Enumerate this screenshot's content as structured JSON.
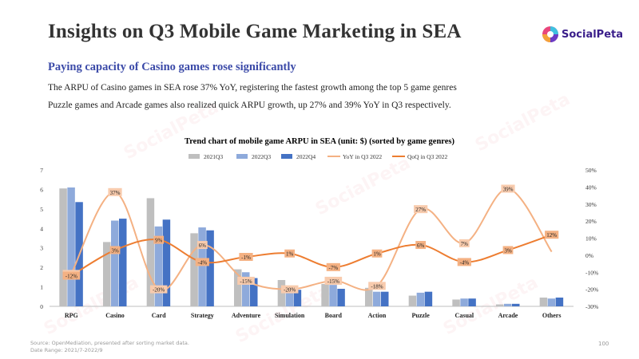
{
  "header": {
    "title": "Insights on Q3 Mobile Game Marketing in SEA",
    "logo_text": "SocialPeta"
  },
  "section": {
    "subtitle": "Paying capacity of Casino games rose significantly",
    "lines": [
      "The ARPU of Casino games in SEA rose 37% YoY, registering the fastest growth among the top 5 game genres",
      "Puzzle games and Arcade games also realized quick ARPU growth, up 27% and 39% YoY in Q3 respectively."
    ]
  },
  "colors": {
    "accent": "#3b4aa8",
    "bar_2021q3": "#bfbfbf",
    "bar_2022q3": "#8eaadb",
    "bar_2022q4": "#4472c4",
    "yoy_line": "#f4b183",
    "qoq_line": "#ed7d31"
  },
  "chart_data": {
    "type": "bar",
    "title": "Trend chart of mobile game ARPU in SEA (unit: $) (sorted by game genres)",
    "categories": [
      "RPG",
      "Casino",
      "Card",
      "Strategy",
      "Adventure",
      "Simulation",
      "Board",
      "Action",
      "Puzzle",
      "Casual",
      "Arcade",
      "Others"
    ],
    "series": [
      {
        "name": "2021Q3",
        "kind": "bar",
        "values": [
          6.05,
          3.3,
          5.55,
          3.75,
          1.9,
          1.35,
          1.15,
          0.95,
          0.55,
          0.35,
          0.1,
          0.45
        ]
      },
      {
        "name": "2022Q3",
        "kind": "bar",
        "values": [
          6.1,
          4.4,
          4.1,
          4.05,
          1.75,
          1.05,
          1.1,
          0.75,
          0.7,
          0.4,
          0.13,
          0.4
        ]
      },
      {
        "name": "2022Q4",
        "kind": "bar",
        "values": [
          5.35,
          4.5,
          4.45,
          3.9,
          1.45,
          0.85,
          0.9,
          0.75,
          0.75,
          0.4,
          0.13,
          0.45
        ]
      },
      {
        "name": "YoY in Q3 2022",
        "kind": "line",
        "axis": "right",
        "values": [
          -11,
          37,
          -20,
          6,
          -15,
          -20,
          -15,
          -18,
          27,
          7,
          39,
          2
        ],
        "labels": [
          "-11%",
          "37%",
          "-20%",
          "6%",
          "-15%",
          "-20%",
          "-15%",
          "-18%",
          "27%",
          "7%",
          "39%",
          ""
        ]
      },
      {
        "name": "QoQ in Q3 2022",
        "kind": "line",
        "axis": "right",
        "values": [
          -12,
          3,
          9,
          -4,
          -1,
          1,
          -7,
          1,
          6,
          -4,
          3,
          12
        ],
        "labels": [
          "-12%",
          "3%",
          "9%",
          "-4%",
          "-1%",
          "1%",
          "-7%",
          "1%",
          "6%",
          "-4%",
          "3%",
          "12%"
        ]
      }
    ],
    "y_left": {
      "min": 0,
      "max": 7,
      "ticks": [
        "0",
        "1",
        "2",
        "3",
        "4",
        "5",
        "6",
        "7"
      ]
    },
    "y_right": {
      "min": -30,
      "max": 50,
      "ticks": [
        "-30%",
        "-20%",
        "-10%",
        "0%",
        "10%",
        "20%",
        "30%",
        "40%",
        "50%"
      ]
    },
    "legend_position": "top",
    "grid": false
  },
  "footer": {
    "source": "Source: OpenMediation, presented after sorting market data.",
    "date_range": "Date Range: 2021/7-2022/9",
    "page_number": "100"
  }
}
